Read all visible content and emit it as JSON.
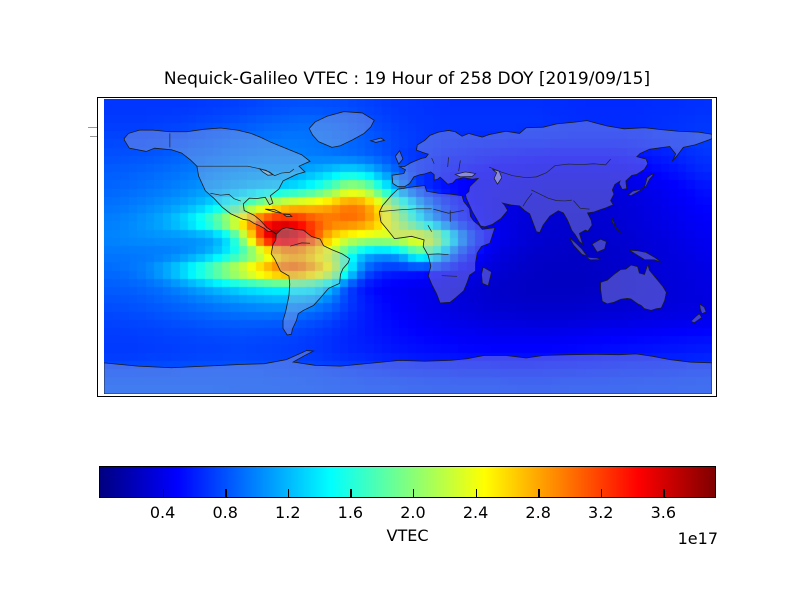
{
  "title": "Nequick-Galileo VTEC : 19 Hour of 258 DOY [2019/09/15]",
  "chart_data": {
    "type": "heatmap",
    "title": "Nequick-Galileo VTEC : 19 Hour of 258 DOY [2019/09/15]",
    "colormap": "jet",
    "projection": "equirectangular world map, lon -180..180, lat 90..-90",
    "colorbar": {
      "label": "VTEC",
      "exponent_label": "1e17",
      "ticks": [
        0.4,
        0.8,
        1.2,
        1.6,
        2.0,
        2.4,
        2.8,
        3.2,
        3.6
      ],
      "vmin": 0.0,
      "vmax": 3.93,
      "orientation": "horizontal"
    },
    "colormap_stops": [
      [
        0.0,
        "#000080"
      ],
      [
        0.125,
        "#0000ff"
      ],
      [
        0.375,
        "#00ffff"
      ],
      [
        0.625,
        "#ffff00"
      ],
      [
        0.875,
        "#ff0000"
      ],
      [
        1.0,
        "#800000"
      ]
    ],
    "map_overlay": {
      "land_fill": "rgba(186,186,212,0.35)",
      "coastline_color": "#1a1a1a",
      "border_color": "#222222",
      "lake_fill": "rgba(196,196,218,0.55)"
    },
    "grid": {
      "lon_start": -175,
      "lon_step": 10,
      "lat_start": 85,
      "lat_step": -10,
      "units_scale": "1e17",
      "values": [
        [
          0.7,
          0.7,
          0.7,
          0.7,
          0.7,
          0.71,
          0.72,
          0.73,
          0.75,
          0.77,
          0.79,
          0.8,
          0.8,
          0.79,
          0.77,
          0.75,
          0.72,
          0.7,
          0.69,
          0.68,
          0.67,
          0.67,
          0.67,
          0.67,
          0.67,
          0.67,
          0.66,
          0.66,
          0.65,
          0.65,
          0.65,
          0.65,
          0.66,
          0.66,
          0.67,
          0.68
        ],
        [
          0.72,
          0.72,
          0.72,
          0.73,
          0.74,
          0.76,
          0.78,
          0.8,
          0.83,
          0.86,
          0.88,
          0.9,
          0.9,
          0.88,
          0.85,
          0.8,
          0.76,
          0.72,
          0.7,
          0.69,
          0.69,
          0.69,
          0.69,
          0.69,
          0.69,
          0.69,
          0.68,
          0.67,
          0.66,
          0.66,
          0.66,
          0.66,
          0.67,
          0.68,
          0.69,
          0.7
        ],
        [
          0.76,
          0.76,
          0.77,
          0.78,
          0.8,
          0.83,
          0.86,
          0.89,
          0.91,
          0.93,
          0.95,
          0.95,
          0.94,
          0.92,
          0.89,
          0.85,
          0.8,
          0.75,
          0.72,
          0.69,
          0.67,
          0.66,
          0.65,
          0.65,
          0.64,
          0.64,
          0.64,
          0.63,
          0.63,
          0.63,
          0.63,
          0.64,
          0.66,
          0.68,
          0.7,
          0.72
        ],
        [
          0.8,
          0.81,
          0.82,
          0.84,
          0.87,
          0.9,
          0.93,
          0.96,
          0.98,
          1.0,
          1.0,
          0.99,
          0.97,
          0.94,
          0.91,
          0.87,
          0.81,
          0.74,
          0.69,
          0.65,
          0.61,
          0.59,
          0.57,
          0.55,
          0.54,
          0.53,
          0.52,
          0.52,
          0.52,
          0.52,
          0.53,
          0.55,
          0.58,
          0.61,
          0.65,
          0.69
        ],
        [
          0.85,
          0.86,
          0.88,
          0.91,
          0.94,
          0.97,
          1.01,
          1.05,
          1.08,
          1.1,
          1.1,
          1.12,
          1.18,
          1.28,
          1.38,
          1.3,
          1.08,
          0.84,
          0.7,
          0.62,
          0.56,
          0.52,
          0.49,
          0.47,
          0.45,
          0.44,
          0.43,
          0.43,
          0.43,
          0.43,
          0.44,
          0.46,
          0.5,
          0.54,
          0.59,
          0.64
        ],
        [
          0.88,
          0.9,
          0.93,
          0.96,
          1.0,
          1.05,
          1.1,
          1.16,
          1.22,
          1.27,
          1.32,
          1.4,
          1.58,
          1.85,
          2.2,
          2.1,
          1.6,
          1.05,
          0.75,
          0.6,
          0.52,
          0.47,
          0.44,
          0.42,
          0.4,
          0.38,
          0.37,
          0.36,
          0.36,
          0.36,
          0.37,
          0.39,
          0.42,
          0.46,
          0.5,
          0.55
        ],
        [
          0.93,
          0.96,
          1.0,
          1.05,
          1.11,
          1.2,
          1.35,
          1.55,
          1.85,
          2.15,
          2.45,
          2.6,
          2.65,
          2.8,
          2.98,
          2.9,
          2.45,
          1.85,
          1.3,
          0.88,
          0.64,
          0.52,
          0.45,
          0.4,
          0.37,
          0.35,
          0.34,
          0.33,
          0.33,
          0.33,
          0.34,
          0.36,
          0.39,
          0.43,
          0.47,
          0.51
        ],
        [
          0.98,
          1.02,
          1.08,
          1.16,
          1.3,
          1.52,
          1.85,
          2.3,
          2.85,
          3.3,
          3.5,
          3.4,
          3.15,
          3.0,
          3.05,
          2.95,
          2.6,
          2.1,
          1.55,
          1.1,
          0.76,
          0.56,
          0.46,
          0.4,
          0.36,
          0.33,
          0.31,
          0.3,
          0.3,
          0.31,
          0.33,
          0.35,
          0.38,
          0.41,
          0.44,
          0.47
        ],
        [
          1.0,
          1.02,
          1.04,
          1.05,
          1.05,
          1.06,
          1.1,
          1.4,
          2.3,
          3.45,
          3.85,
          3.65,
          3.15,
          2.6,
          2.35,
          2.25,
          2.25,
          2.35,
          2.55,
          2.4,
          1.6,
          0.9,
          0.55,
          0.42,
          0.36,
          0.32,
          0.3,
          0.29,
          0.29,
          0.3,
          0.31,
          0.33,
          0.35,
          0.38,
          0.41,
          0.44
        ],
        [
          0.95,
          0.95,
          0.95,
          0.96,
          1.0,
          1.08,
          1.22,
          1.45,
          1.75,
          2.15,
          2.6,
          2.7,
          2.5,
          2.2,
          1.6,
          1.2,
          1.1,
          1.2,
          1.7,
          1.6,
          1.0,
          0.62,
          0.45,
          0.37,
          0.32,
          0.29,
          0.28,
          0.27,
          0.27,
          0.28,
          0.3,
          0.32,
          0.34,
          0.36,
          0.39,
          0.42
        ],
        [
          0.9,
          0.93,
          1.0,
          1.15,
          1.35,
          1.62,
          1.92,
          2.22,
          2.52,
          2.82,
          3.05,
          3.1,
          2.8,
          2.4,
          1.5,
          0.85,
          0.65,
          0.6,
          0.58,
          0.55,
          0.5,
          0.44,
          0.37,
          0.32,
          0.29,
          0.27,
          0.26,
          0.26,
          0.26,
          0.27,
          0.29,
          0.31,
          0.33,
          0.35,
          0.37,
          0.39
        ],
        [
          0.85,
          0.86,
          0.89,
          0.94,
          1.02,
          1.12,
          1.22,
          1.32,
          1.42,
          1.48,
          1.52,
          1.52,
          1.48,
          1.2,
          0.75,
          0.55,
          0.48,
          0.45,
          0.42,
          0.4,
          0.37,
          0.34,
          0.31,
          0.29,
          0.27,
          0.26,
          0.26,
          0.26,
          0.26,
          0.27,
          0.29,
          0.31,
          0.32,
          0.34,
          0.36,
          0.38
        ],
        [
          0.8,
          0.81,
          0.83,
          0.86,
          0.89,
          0.93,
          0.97,
          1.01,
          1.05,
          1.08,
          1.1,
          1.08,
          1.02,
          0.9,
          0.72,
          0.6,
          0.52,
          0.47,
          0.43,
          0.4,
          0.37,
          0.34,
          0.32,
          0.3,
          0.29,
          0.28,
          0.28,
          0.28,
          0.29,
          0.3,
          0.31,
          0.32,
          0.33,
          0.35,
          0.36,
          0.37
        ],
        [
          0.75,
          0.76,
          0.77,
          0.79,
          0.81,
          0.83,
          0.85,
          0.86,
          0.87,
          0.87,
          0.86,
          0.84,
          0.8,
          0.74,
          0.66,
          0.59,
          0.54,
          0.5,
          0.46,
          0.43,
          0.41,
          0.39,
          0.37,
          0.36,
          0.35,
          0.34,
          0.34,
          0.34,
          0.35,
          0.36,
          0.37,
          0.38,
          0.39,
          0.4,
          0.41,
          0.42
        ],
        [
          0.72,
          0.72,
          0.73,
          0.74,
          0.75,
          0.76,
          0.77,
          0.78,
          0.78,
          0.77,
          0.76,
          0.74,
          0.71,
          0.67,
          0.63,
          0.59,
          0.56,
          0.53,
          0.51,
          0.49,
          0.47,
          0.46,
          0.45,
          0.44,
          0.44,
          0.44,
          0.44,
          0.45,
          0.46,
          0.47,
          0.48,
          0.49,
          0.5,
          0.51,
          0.52,
          0.53
        ],
        [
          0.71,
          0.71,
          0.72,
          0.72,
          0.73,
          0.74,
          0.74,
          0.75,
          0.75,
          0.74,
          0.73,
          0.72,
          0.7,
          0.67,
          0.64,
          0.62,
          0.59,
          0.57,
          0.55,
          0.54,
          0.53,
          0.52,
          0.51,
          0.51,
          0.51,
          0.51,
          0.51,
          0.52,
          0.53,
          0.54,
          0.55,
          0.56,
          0.57,
          0.58,
          0.59,
          0.6
        ],
        [
          0.78,
          0.78,
          0.79,
          0.79,
          0.8,
          0.8,
          0.81,
          0.81,
          0.81,
          0.8,
          0.79,
          0.78,
          0.77,
          0.75,
          0.73,
          0.71,
          0.69,
          0.67,
          0.66,
          0.65,
          0.64,
          0.63,
          0.63,
          0.62,
          0.62,
          0.62,
          0.63,
          0.63,
          0.64,
          0.65,
          0.66,
          0.67,
          0.67,
          0.68,
          0.69,
          0.7
        ],
        [
          0.84,
          0.84,
          0.84,
          0.84,
          0.84,
          0.84,
          0.84,
          0.83,
          0.83,
          0.83,
          0.82,
          0.82,
          0.81,
          0.8,
          0.79,
          0.78,
          0.78,
          0.77,
          0.76,
          0.75,
          0.75,
          0.74,
          0.74,
          0.74,
          0.73,
          0.73,
          0.73,
          0.74,
          0.74,
          0.74,
          0.75,
          0.75,
          0.76,
          0.76,
          0.77,
          0.77
        ]
      ]
    }
  }
}
